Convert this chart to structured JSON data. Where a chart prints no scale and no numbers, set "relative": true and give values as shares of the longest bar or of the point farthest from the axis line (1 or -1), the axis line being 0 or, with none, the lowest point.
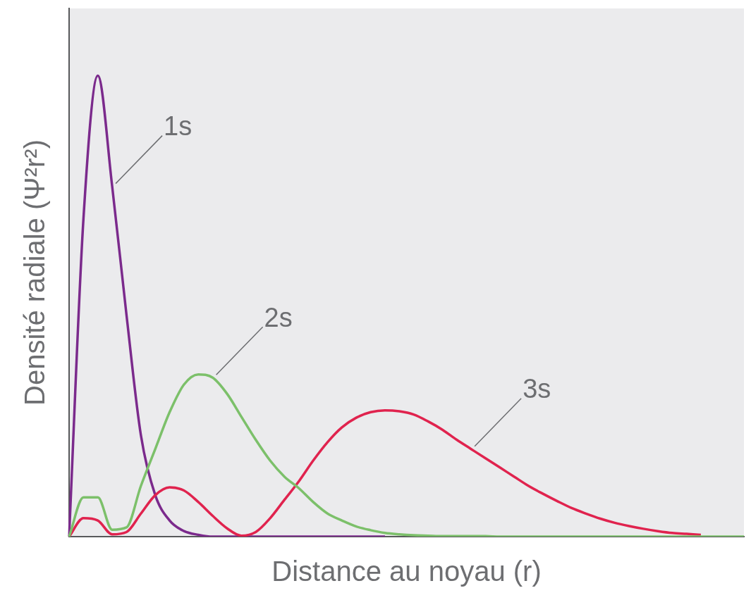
{
  "chart_data": {
    "type": "line",
    "relative": true,
    "xlabel": "Distance au noyau (r)",
    "ylabel": "Densité radiale (Ψ²r²)",
    "legend": false,
    "grid": false,
    "categories": [
      null,
      null,
      null,
      null,
      null,
      null,
      null,
      null,
      null,
      null,
      null,
      null,
      null,
      null,
      null,
      null,
      null,
      null,
      null,
      null,
      null,
      null,
      null,
      null,
      null,
      null,
      null,
      null,
      null,
      null,
      null,
      null,
      null,
      null,
      null,
      null,
      null,
      null,
      null,
      null,
      null,
      null,
      null,
      null,
      null,
      null,
      null,
      null
    ],
    "series": [
      {
        "name": "1s",
        "color": "#7b2a8c",
        "values": [
          0,
          0.69,
          1,
          0.76,
          0.48,
          0.22,
          0.09,
          0.035,
          0.012,
          0.004,
          0,
          0,
          0,
          0,
          0,
          0,
          0,
          0,
          0,
          0,
          0,
          0,
          0,
          null,
          null,
          null,
          null,
          null,
          null,
          null,
          null,
          null,
          null,
          null,
          null,
          null,
          null,
          null,
          null,
          null,
          null,
          null,
          null,
          null,
          null,
          null,
          null,
          null
        ]
      },
      {
        "name": "2s",
        "color": "#7cc06a",
        "values": [
          0,
          0.085,
          0.085,
          0.015,
          0.02,
          0.11,
          0.19,
          0.27,
          0.33,
          0.352,
          0.345,
          0.31,
          0.26,
          0.21,
          0.165,
          0.13,
          0.105,
          0.075,
          0.05,
          0.035,
          0.022,
          0.014,
          0.008,
          0.005,
          0.003,
          0.002,
          0.001,
          0.001,
          0.001,
          0.001,
          0,
          0,
          0,
          0,
          0,
          0,
          0,
          0,
          0,
          0,
          0,
          0,
          0,
          0,
          0,
          0,
          0,
          0
        ]
      },
      {
        "name": "3s",
        "color": "#e0234e",
        "values": [
          0,
          0.04,
          0.035,
          0.005,
          0.01,
          0.05,
          0.09,
          0.107,
          0.1,
          0.075,
          0.045,
          0.018,
          0.002,
          0.01,
          0.04,
          0.08,
          0.12,
          0.165,
          0.205,
          0.237,
          0.258,
          0.27,
          0.274,
          0.272,
          0.265,
          0.25,
          0.232,
          0.21,
          0.19,
          0.17,
          0.15,
          0.13,
          0.11,
          0.093,
          0.077,
          0.062,
          0.05,
          0.039,
          0.03,
          0.023,
          0.017,
          0.012,
          0.008,
          0.006,
          0.004,
          null,
          null,
          null
        ]
      }
    ]
  }
}
